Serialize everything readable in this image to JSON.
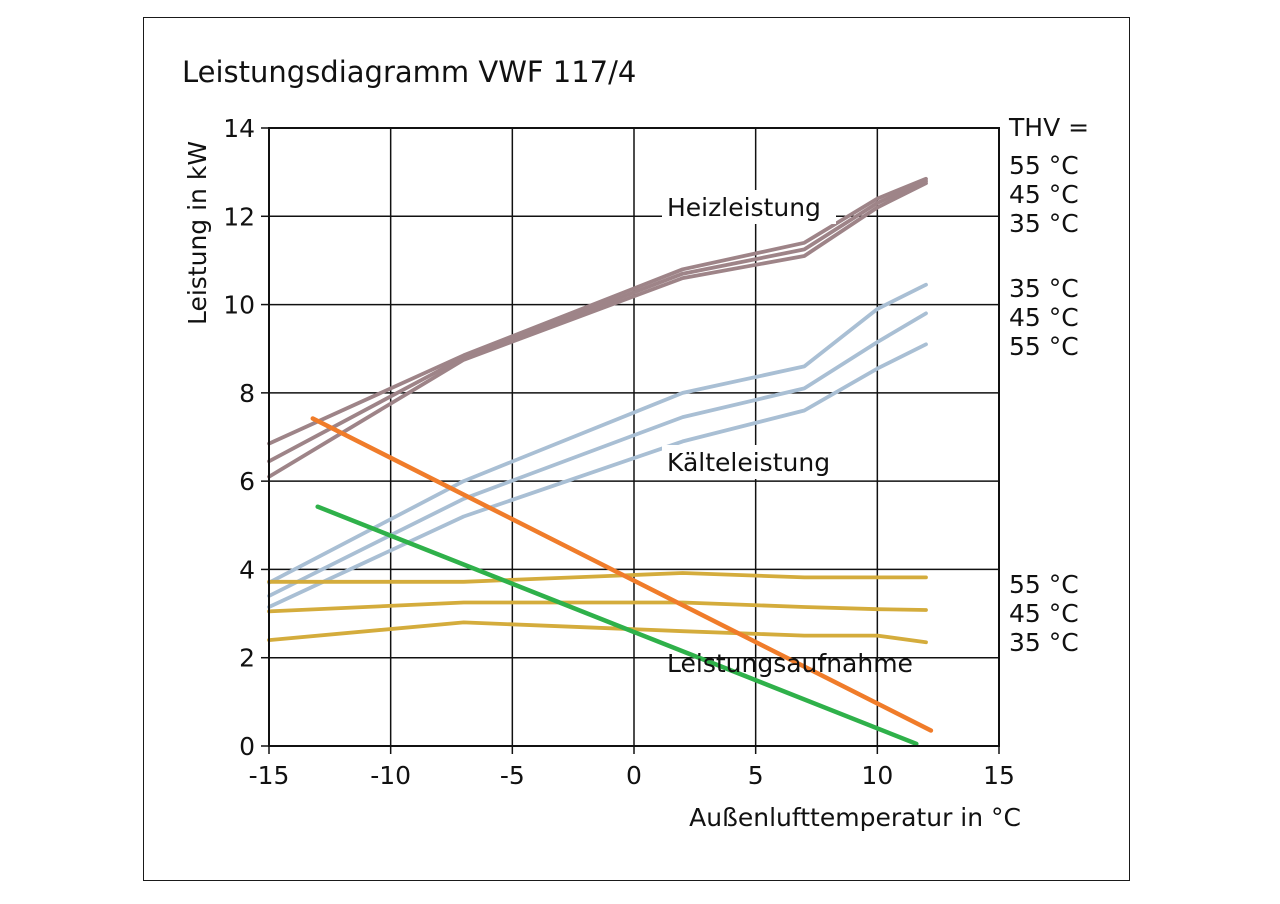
{
  "chart_data": {
    "type": "line",
    "title": "Leistungsdiagramm VWF 117/4",
    "xlabel": "Außenlufttemperatur in °C",
    "ylabel": "Leistung in kW",
    "xlim": [
      -15,
      15
    ],
    "ylim": [
      0,
      14
    ],
    "x_ticks": [
      "-15",
      "-10",
      "-5",
      "0",
      "5",
      "10",
      "15"
    ],
    "y_ticks": [
      "0",
      "2",
      "4",
      "6",
      "8",
      "10",
      "12",
      "14"
    ],
    "grid": true,
    "annotations": {
      "heat": "Heizleistung",
      "cool": "Kälteleistung",
      "power": "Leistungsaufnahme"
    },
    "thv_label": "THV =",
    "thv_heat": [
      "55 °C",
      "45 °C",
      "35 °C"
    ],
    "thv_cool": [
      "35 °C",
      "45 °C",
      "55 °C"
    ],
    "thv_power": [
      "55 °C",
      "45 °C",
      "35 °C"
    ],
    "colors": {
      "heat": "#9e8488",
      "cool": "#a9bfd4",
      "power": "#d4ac3c",
      "orange": "#f07c2a",
      "green": "#2fb14a",
      "grid": "#111111"
    },
    "series": [
      {
        "group": "heat",
        "x": [
          -15,
          -7,
          2,
          7,
          10,
          12
        ],
        "y": [
          6.85,
          8.85,
          10.8,
          11.4,
          12.4,
          12.85
        ]
      },
      {
        "group": "heat",
        "x": [
          -15,
          -7,
          2,
          7,
          10,
          12
        ],
        "y": [
          6.45,
          8.8,
          10.7,
          11.25,
          12.3,
          12.8
        ]
      },
      {
        "group": "heat",
        "x": [
          -15,
          -7,
          2,
          7,
          10,
          12
        ],
        "y": [
          6.1,
          8.75,
          10.6,
          11.1,
          12.2,
          12.75
        ]
      },
      {
        "group": "cool",
        "x": [
          -15,
          -7,
          2,
          7,
          10,
          12
        ],
        "y": [
          3.7,
          6.0,
          8.0,
          8.6,
          9.9,
          10.45
        ]
      },
      {
        "group": "cool",
        "x": [
          -15,
          -7,
          2,
          7,
          10,
          12
        ],
        "y": [
          3.4,
          5.6,
          7.45,
          8.1,
          9.15,
          9.8
        ]
      },
      {
        "group": "cool",
        "x": [
          -15,
          -7,
          2,
          7,
          10,
          12
        ],
        "y": [
          3.15,
          5.2,
          6.9,
          7.6,
          8.55,
          9.1
        ]
      },
      {
        "group": "power",
        "x": [
          -15,
          -7,
          2,
          7,
          10,
          12
        ],
        "y": [
          3.72,
          3.72,
          3.92,
          3.82,
          3.82,
          3.82
        ]
      },
      {
        "group": "power",
        "x": [
          -15,
          -7,
          2,
          7,
          10,
          12
        ],
        "y": [
          3.05,
          3.25,
          3.25,
          3.15,
          3.1,
          3.08
        ]
      },
      {
        "group": "power",
        "x": [
          -15,
          -7,
          2,
          7,
          10,
          12
        ],
        "y": [
          2.4,
          2.8,
          2.6,
          2.5,
          2.5,
          2.35
        ]
      },
      {
        "group": "orange",
        "x": [
          -13.2,
          12.2
        ],
        "y": [
          7.42,
          0.35
        ]
      },
      {
        "group": "green",
        "x": [
          -13,
          11.6
        ],
        "y": [
          5.42,
          0.05
        ]
      }
    ]
  }
}
